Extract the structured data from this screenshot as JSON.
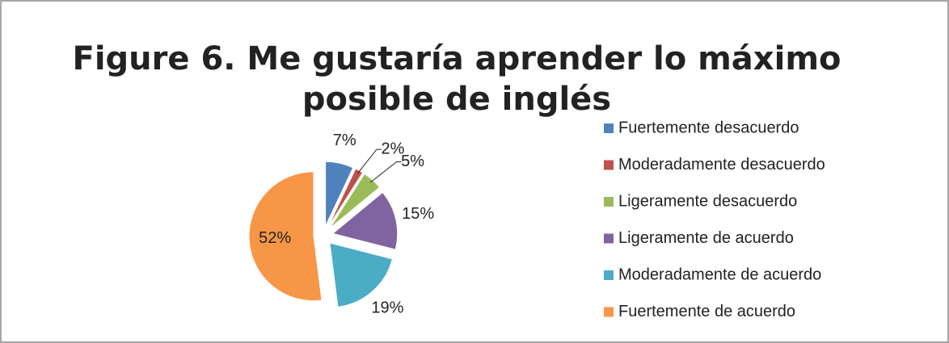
{
  "chart_data": {
    "type": "pie",
    "title": "Figure 6. Me gustaría aprender lo máximo posible de inglés",
    "categories": [
      "Fuertemente desacuerdo",
      "Moderadamente desacuerdo",
      "Ligeramente desacuerdo",
      "Ligeramente de acuerdo",
      "Moderadamente de acuerdo",
      "Fuertemente de acuerdo"
    ],
    "values": [
      7,
      2,
      5,
      15,
      19,
      52
    ],
    "value_labels": [
      "7%",
      "2%",
      "5%",
      "15%",
      "19%",
      "52%"
    ],
    "colors": [
      "#4f81bd",
      "#c0504d",
      "#9bbb59",
      "#8064a2",
      "#4bacc6",
      "#f79646"
    ],
    "legend": "right"
  }
}
